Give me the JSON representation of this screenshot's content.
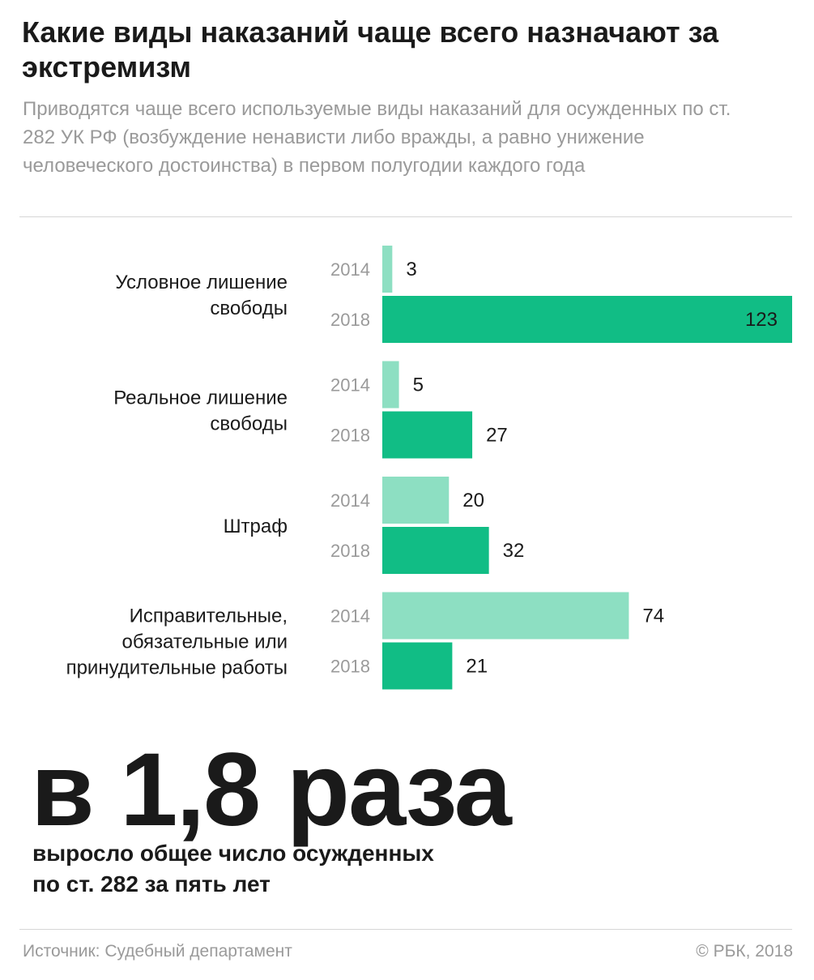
{
  "header": {
    "title": "Какие виды наказаний чаще всего назначают за экстремизм",
    "subtitle": "Приводятся чаще всего используемые виды наказаний для осужденных по ст. 282 УК РФ (возбуждение ненависти либо вражды, а равно унижение человеческого достоинства) в первом полугодии каждого года"
  },
  "chart_data": {
    "type": "bar",
    "orientation": "horizontal",
    "categories": [
      [
        "Условное лишение",
        "свободы"
      ],
      [
        "Реальное лишение",
        "свободы"
      ],
      [
        "Штраф"
      ],
      [
        "Исправительные,",
        "обязательные или",
        "принудительные работы"
      ]
    ],
    "series": [
      {
        "name": "2014",
        "color": "#8ddfc2",
        "values": [
          3,
          5,
          20,
          74
        ]
      },
      {
        "name": "2018",
        "color": "#11bd85",
        "values": [
          123,
          27,
          32,
          21
        ]
      }
    ],
    "xlim": [
      0,
      123
    ],
    "grid": false,
    "legend": "none"
  },
  "highlight": {
    "value": "в 1,8 раза",
    "caption_line1": "выросло общее число осужденных",
    "caption_line2": "по ст. 282 за пять лет"
  },
  "footer": {
    "source": "Источник: Судебный департамент",
    "copyright": "© РБК, 2018"
  }
}
